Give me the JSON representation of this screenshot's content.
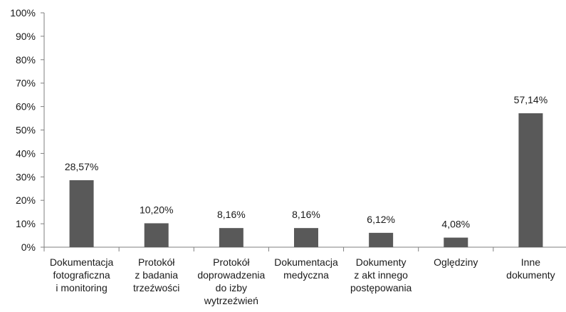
{
  "chart_data": {
    "type": "bar",
    "categories": [
      [
        "Dokumentacja",
        "fotograficzna",
        "i monitoring"
      ],
      [
        "Protokół",
        "z badania",
        "trzeźwości"
      ],
      [
        "Protokół",
        "doprowadzenia",
        "do izby",
        "wytrzeźwień"
      ],
      [
        "Dokumentacja",
        "medyczna"
      ],
      [
        "Dokumenty",
        "z akt innego",
        "postępowania"
      ],
      [
        "Oględziny"
      ],
      [
        "Inne",
        "dokumenty"
      ]
    ],
    "values": [
      28.57,
      10.2,
      8.16,
      8.16,
      6.12,
      4.08,
      57.14
    ],
    "data_labels": [
      "28,57%",
      "10,20%",
      "8,16%",
      "8,16%",
      "6,12%",
      "4,08%",
      "57,14%"
    ],
    "y_ticks": [
      "0%",
      "10%",
      "20%",
      "30%",
      "40%",
      "50%",
      "60%",
      "70%",
      "80%",
      "90%",
      "100%"
    ],
    "ylim": [
      0,
      100
    ],
    "grid": false,
    "bar_color": "#595959",
    "axis_color": "#7f7f7f"
  }
}
